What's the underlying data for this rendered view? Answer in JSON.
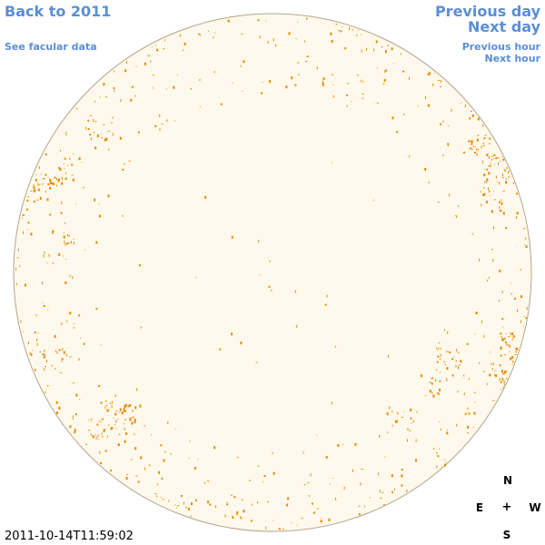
{
  "nav": {
    "back_label": "Back to 2011",
    "facular_label": "See facular data",
    "prev_day_label": "Previous day",
    "next_day_label": "Next day",
    "prev_hour_label": "Previous hour",
    "next_hour_label": "Next hour"
  },
  "compass": {
    "north": "N",
    "east": "E",
    "center": "+",
    "west": "W",
    "south": "S"
  },
  "timestamp": "2011-10-14T11:59:02",
  "colors": {
    "disk_fill": "#fef9ec",
    "disk_stroke": "#b4a58c",
    "feature": "#e88a00",
    "link": "#5b8ed6"
  }
}
